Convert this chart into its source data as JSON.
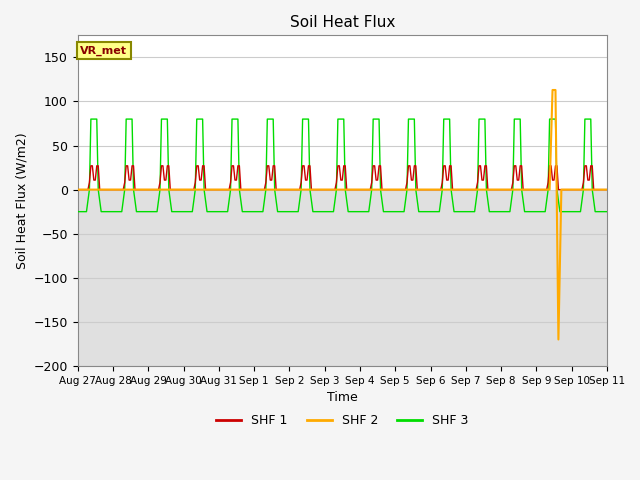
{
  "title": "Soil Heat Flux",
  "xlabel": "Time",
  "ylabel": "Soil Heat Flux (W/m2)",
  "ylim": [
    -200,
    175
  ],
  "yticks": [
    -200,
    -150,
    -100,
    -50,
    0,
    50,
    100,
    150
  ],
  "plot_bg_upper": "#ffffff",
  "plot_bg_lower": "#e8e8e8",
  "grid_color": "#d0d0d0",
  "shf1_color": "#cc0000",
  "shf2_color": "#ffaa00",
  "shf3_color": "#00dd00",
  "label_box_facecolor": "#ffff88",
  "label_box_edgecolor": "#888800",
  "vr_met_label": "VR_met",
  "legend_labels": [
    "SHF 1",
    "SHF 2",
    "SHF 3"
  ],
  "x_tick_labels": [
    "Aug 27",
    "Aug 28",
    "Aug 29",
    "Aug 30",
    "Aug 31",
    "Sep 1",
    "Sep 2",
    "Sep 3",
    "Sep 4",
    "Sep 5",
    "Sep 6",
    "Sep 7",
    "Sep 8",
    "Sep 9",
    "Sep 10",
    "Sep 11"
  ],
  "num_days": 15,
  "shf3_peak": 80,
  "shf3_trough": -25,
  "shf1_peak": 27,
  "shf2_spike_up": 113,
  "shf2_spike_down": -170,
  "shf2_spike_day": 13
}
